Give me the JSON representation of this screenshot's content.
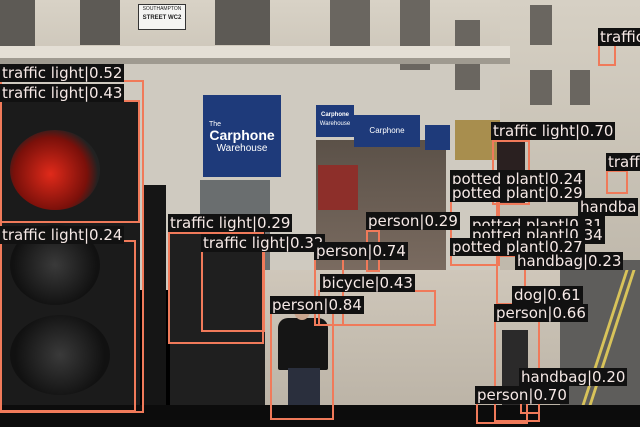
{
  "scene": {
    "street_sign": {
      "line1": "SOUTHAMPTON",
      "line2": "STREET WC2"
    },
    "store_sign_main": {
      "line1": "The",
      "line2": "Carphone",
      "line3": "Warehouse"
    },
    "store_sign_small": {
      "line1": "Carphone",
      "line2": "Warehouse"
    },
    "store_sign_fascia": "Carphone Warehouse",
    "colors": {
      "box": "#f07a5a",
      "label_bg": "#111111",
      "sign_blue": "#1e3a7a"
    }
  },
  "detections": [
    {
      "label": "traffic light|0.52"
    },
    {
      "label": "traffic light|0.43"
    },
    {
      "label": "traffic light|0.24"
    },
    {
      "label": "traffic light|0.29"
    },
    {
      "label": "traffic light|0.32"
    },
    {
      "label": "person|0.74"
    },
    {
      "label": "person|0.29"
    },
    {
      "label": "bicycle|0.43"
    },
    {
      "label": "person|0.84"
    },
    {
      "label": "traffic light|0.70"
    },
    {
      "label": "traffic light"
    },
    {
      "label": "traff"
    },
    {
      "label": "potted plant|0.24"
    },
    {
      "label": "potted plant|0.29"
    },
    {
      "label": "handba"
    },
    {
      "label": "potted plant|0.31"
    },
    {
      "label": "potted plant|0.34"
    },
    {
      "label": "potted plant|0.27"
    },
    {
      "label": "handbag|0.23"
    },
    {
      "label": "dog|0.61"
    },
    {
      "label": "person|0.66"
    },
    {
      "label": "handbag|0.20"
    },
    {
      "label": "person|0.70"
    }
  ]
}
